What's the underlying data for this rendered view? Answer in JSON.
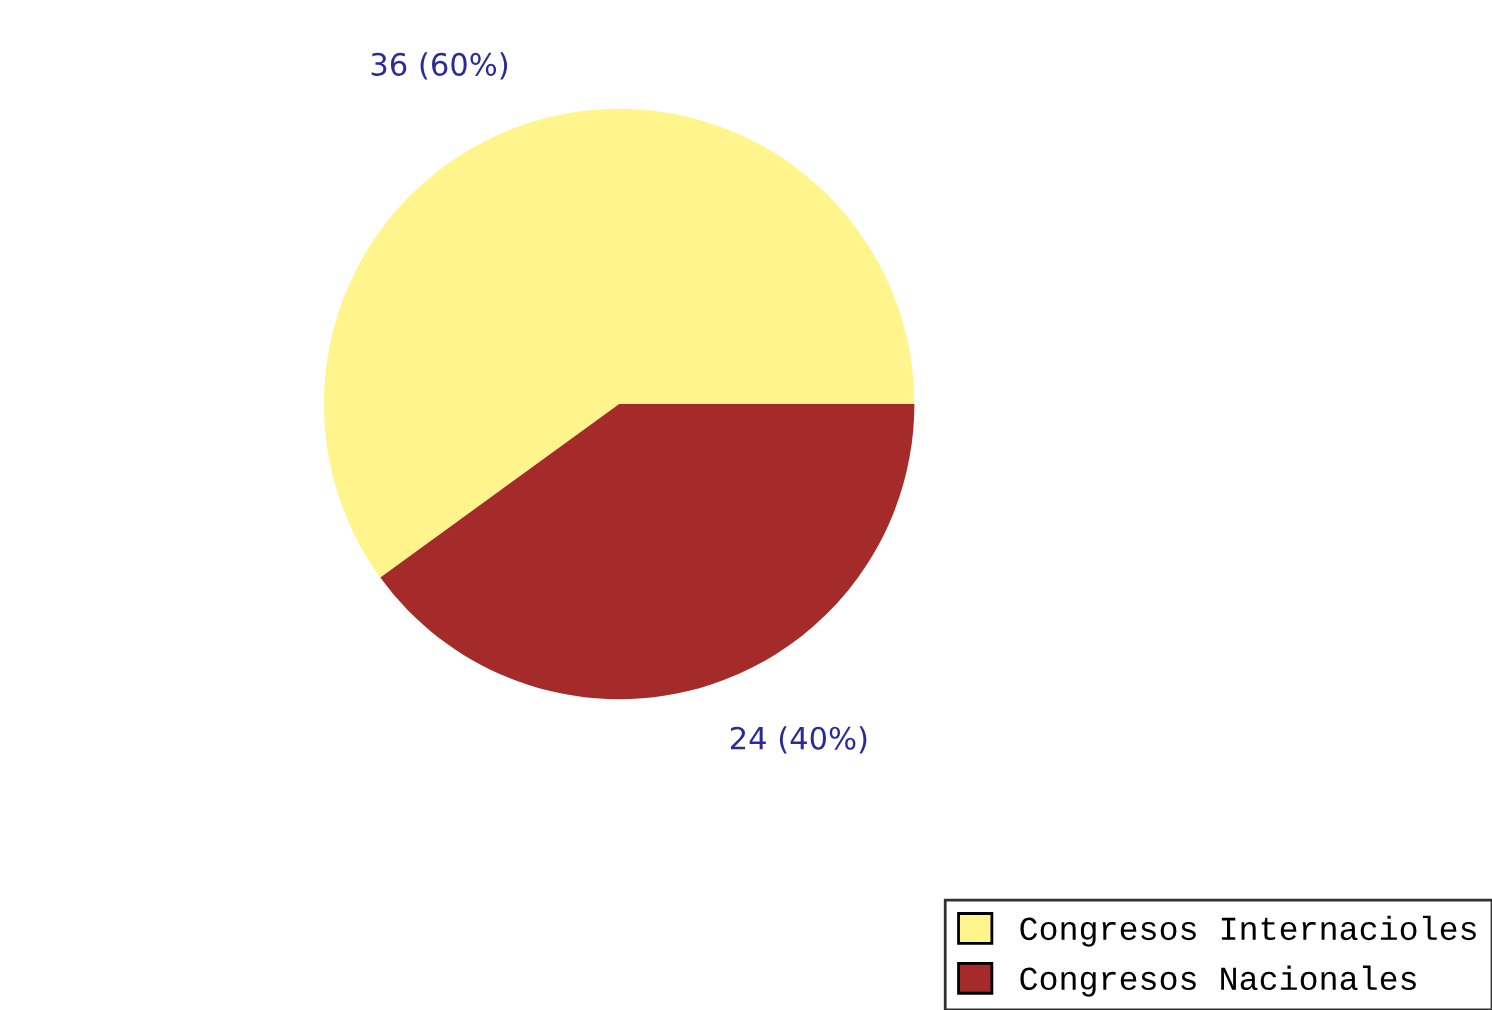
{
  "chart_data": {
    "type": "pie",
    "categories": [
      "Congresos Internacioles",
      "Congresos Nacionales"
    ],
    "values": [
      36,
      24
    ],
    "colors": [
      "#fff58c",
      "#a52a2a"
    ],
    "value_labels": [
      "36 (60%)",
      "24 (40%)"
    ],
    "legend": "bottom right"
  }
}
